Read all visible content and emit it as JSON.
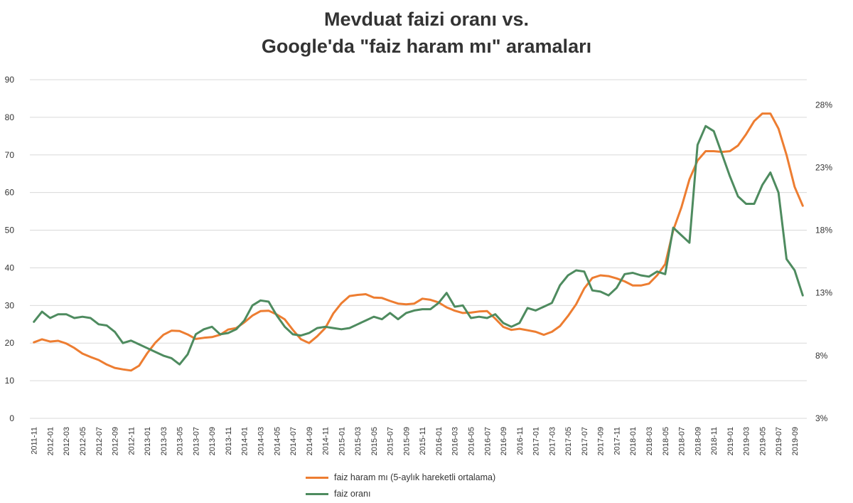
{
  "chart_data": {
    "type": "line",
    "title_lines": [
      "Mevduat faizi oranı vs.",
      "Google'da \"faiz haram mı\" aramaları"
    ],
    "x": [
      "2011-11",
      "2011-12",
      "2012-01",
      "2012-02",
      "2012-03",
      "2012-04",
      "2012-05",
      "2012-06",
      "2012-07",
      "2012-08",
      "2012-09",
      "2012-10",
      "2012-11",
      "2012-12",
      "2013-01",
      "2013-02",
      "2013-03",
      "2013-04",
      "2013-05",
      "2013-06",
      "2013-07",
      "2013-08",
      "2013-09",
      "2013-10",
      "2013-11",
      "2013-12",
      "2014-01",
      "2014-02",
      "2014-03",
      "2014-04",
      "2014-05",
      "2014-06",
      "2014-07",
      "2014-08",
      "2014-09",
      "2014-10",
      "2014-11",
      "2014-12",
      "2015-01",
      "2015-02",
      "2015-03",
      "2015-04",
      "2015-05",
      "2015-06",
      "2015-07",
      "2015-08",
      "2015-09",
      "2015-10",
      "2015-11",
      "2015-12",
      "2016-01",
      "2016-02",
      "2016-03",
      "2016-04",
      "2016-05",
      "2016-06",
      "2016-07",
      "2016-08",
      "2016-09",
      "2016-10",
      "2016-11",
      "2016-12",
      "2017-01",
      "2017-02",
      "2017-03",
      "2017-04",
      "2017-05",
      "2017-06",
      "2017-07",
      "2017-08",
      "2017-09",
      "2017-10",
      "2017-11",
      "2017-12",
      "2018-01",
      "2018-02",
      "2018-03",
      "2018-04",
      "2018-05",
      "2018-06",
      "2018-07",
      "2018-08",
      "2018-09",
      "2018-10",
      "2018-11",
      "2018-12",
      "2019-01",
      "2019-02",
      "2019-03",
      "2019-04",
      "2019-05",
      "2019-06",
      "2019-07",
      "2019-08",
      "2019-09",
      "2019-10"
    ],
    "x_tick_labels": [
      "2011-11",
      "2012-01",
      "2012-03",
      "2012-05",
      "2012-07",
      "2012-09",
      "2012-11",
      "2013-01",
      "2013-03",
      "2013-05",
      "2013-07",
      "2013-09",
      "2013-11",
      "2014-01",
      "2014-03",
      "2014-05",
      "2014-07",
      "2014-09",
      "2014-11",
      "2015-01",
      "2015-03",
      "2015-05",
      "2015-07",
      "2015-09",
      "2015-11",
      "2016-01",
      "2016-03",
      "2016-05",
      "2016-07",
      "2016-09",
      "2016-11",
      "2017-01",
      "2017-03",
      "2017-05",
      "2017-07",
      "2017-09",
      "2017-11",
      "2018-01",
      "2018-03",
      "2018-05",
      "2018-07",
      "2018-09",
      "2018-11",
      "2019-01",
      "2019-03",
      "2019-05",
      "2019-07",
      "2019-09"
    ],
    "y_left": {
      "ticks": [
        "0",
        "10",
        "20",
        "30",
        "40",
        "50",
        "60",
        "70",
        "80",
        "90"
      ],
      "range": [
        0,
        90
      ]
    },
    "y_right": {
      "ticks": [
        "3%",
        "8%",
        "13%",
        "18%",
        "23%",
        "28%"
      ],
      "values": [
        3,
        8,
        13,
        18,
        23,
        28
      ],
      "range": [
        3,
        30
      ]
    },
    "grid": true,
    "legend_position": "bottom",
    "series": [
      {
        "name": "faiz haram mı (5-aylık hareketli ortalama)",
        "color": "#ED7D31",
        "axis": "left",
        "values": [
          20.2,
          21.0,
          20.4,
          20.6,
          19.9,
          18.7,
          17.2,
          16.3,
          15.5,
          14.3,
          13.4,
          13.0,
          12.7,
          14.0,
          17.3,
          20.1,
          22.2,
          23.3,
          23.2,
          22.3,
          21.1,
          21.4,
          21.6,
          22.2,
          23.6,
          24.0,
          25.5,
          27.3,
          28.5,
          28.6,
          27.6,
          26.3,
          23.5,
          21.0,
          20.0,
          21.8,
          24.0,
          27.9,
          30.6,
          32.5,
          32.8,
          33.0,
          32.1,
          32.0,
          31.2,
          30.5,
          30.3,
          30.5,
          31.8,
          31.5,
          30.8,
          29.5,
          28.6,
          28.0,
          28.1,
          28.4,
          28.5,
          26.5,
          24.3,
          23.5,
          23.8,
          23.4,
          23.0,
          22.2,
          23.0,
          24.5,
          27.2,
          30.3,
          34.5,
          37.3,
          38.0,
          37.8,
          37.2,
          36.4,
          35.3,
          35.3,
          35.8,
          38.0,
          41.0,
          50.0,
          56.0,
          63.5,
          68.5,
          71.0,
          71.0,
          70.8,
          71.0,
          72.5,
          75.5,
          79.0,
          81.0,
          81.0,
          77.0,
          70.0,
          61.5,
          56.5
        ]
      },
      {
        "name": "faiz oranı",
        "color": "#4E8B5F",
        "axis": "right",
        "values": [
          10.7,
          11.5,
          11.0,
          11.3,
          11.3,
          11.0,
          11.1,
          11.0,
          10.5,
          10.4,
          9.9,
          9.0,
          9.2,
          8.9,
          8.6,
          8.3,
          8.0,
          7.8,
          7.3,
          8.1,
          9.7,
          10.1,
          10.3,
          9.7,
          9.8,
          10.1,
          10.8,
          12.0,
          12.4,
          12.3,
          11.2,
          10.3,
          9.7,
          9.6,
          9.8,
          10.2,
          10.3,
          10.2,
          10.1,
          10.2,
          10.5,
          10.8,
          11.1,
          10.9,
          11.4,
          10.9,
          11.4,
          11.6,
          11.7,
          11.7,
          12.2,
          13.0,
          11.9,
          12.0,
          11.0,
          11.1,
          11.0,
          11.3,
          10.6,
          10.3,
          10.6,
          11.8,
          11.6,
          11.9,
          12.2,
          13.6,
          14.4,
          14.8,
          14.7,
          13.2,
          13.1,
          12.8,
          13.4,
          14.5,
          14.6,
          14.4,
          14.3,
          14.7,
          14.5,
          18.2,
          17.6,
          17.0,
          24.8,
          26.3,
          25.9,
          24.1,
          22.3,
          20.7,
          20.1,
          20.1,
          21.6,
          22.6,
          21.0,
          15.7,
          14.8,
          12.8
        ]
      }
    ]
  }
}
